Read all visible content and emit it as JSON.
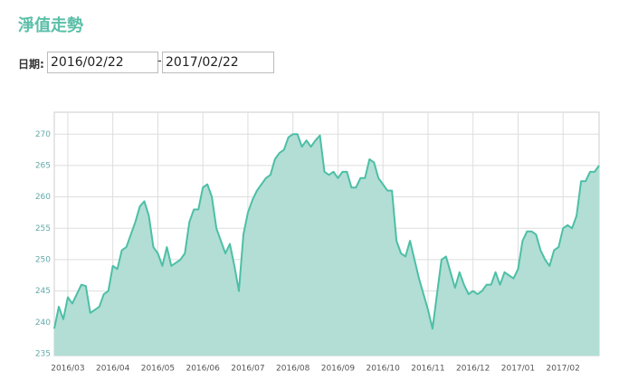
{
  "header": {
    "title": "淨值走勢"
  },
  "date_range": {
    "label": "日期:",
    "start": "2016/02/22",
    "separator": "-",
    "end": "2017/02/22"
  },
  "chart_data": {
    "type": "area",
    "categories": [
      null,
      null,
      null,
      "2016/03",
      null,
      null,
      null,
      null,
      null,
      null,
      null,
      null,
      null,
      "2016/04",
      null,
      null,
      null,
      null,
      null,
      null,
      null,
      null,
      null,
      "2016/05",
      null,
      null,
      null,
      null,
      null,
      null,
      null,
      null,
      null,
      "2016/06",
      null,
      null,
      null,
      null,
      null,
      null,
      null,
      null,
      null,
      "2016/07",
      null,
      null,
      null,
      null,
      null,
      null,
      null,
      null,
      null,
      "2016/08",
      null,
      null,
      null,
      null,
      null,
      null,
      null,
      null,
      null,
      "2016/09",
      null,
      null,
      null,
      null,
      null,
      null,
      null,
      null,
      null,
      "2016/10",
      null,
      null,
      null,
      null,
      null,
      null,
      null,
      null,
      null,
      "2016/11",
      null,
      null,
      null,
      null,
      null,
      null,
      null,
      null,
      null,
      "2016/12",
      null,
      null,
      null,
      null,
      null,
      null,
      null,
      null,
      null,
      "2017/01",
      null,
      null,
      null,
      null,
      null,
      null,
      null,
      null,
      null,
      "2017/02",
      null,
      null,
      null,
      null,
      null,
      null,
      null,
      null
    ],
    "values": [
      239,
      242.5,
      240.5,
      244,
      243,
      244.5,
      246,
      245.8,
      241.5,
      242,
      242.5,
      244.5,
      245,
      249,
      248.5,
      251.5,
      252,
      254,
      256,
      258.5,
      259.3,
      257,
      252,
      251,
      249,
      252,
      249,
      249.5,
      250,
      251,
      256,
      258,
      258,
      261.5,
      262,
      260,
      255,
      253,
      251,
      252.5,
      249,
      245,
      254,
      257.5,
      259.5,
      261,
      262,
      263,
      263.5,
      266,
      267,
      267.5,
      269.5,
      270,
      270,
      268,
      269,
      268,
      269,
      269.8,
      264,
      263.5,
      264,
      263,
      264,
      264,
      261.5,
      261.5,
      263,
      263,
      266,
      265.5,
      263,
      262,
      261,
      261,
      253,
      251,
      250.5,
      253,
      250,
      247,
      244.5,
      242,
      239,
      244.5,
      250,
      250.5,
      248,
      245.5,
      248,
      246,
      244.5,
      245,
      244.5,
      245,
      246,
      246,
      248,
      246,
      248,
      247.5,
      247,
      248.5,
      253,
      254.5,
      254.5,
      254,
      251.5,
      250,
      249,
      251.5,
      252,
      255,
      255.5,
      255,
      257,
      262.5,
      262.5,
      264,
      264,
      265
    ],
    "line_color": "#4dbfa6",
    "fill_color": "#b2ded5",
    "ylim": [
      234.7,
      273.5
    ],
    "yticks": [
      235,
      240,
      245,
      250,
      255,
      260,
      265,
      270
    ],
    "grid": true
  }
}
